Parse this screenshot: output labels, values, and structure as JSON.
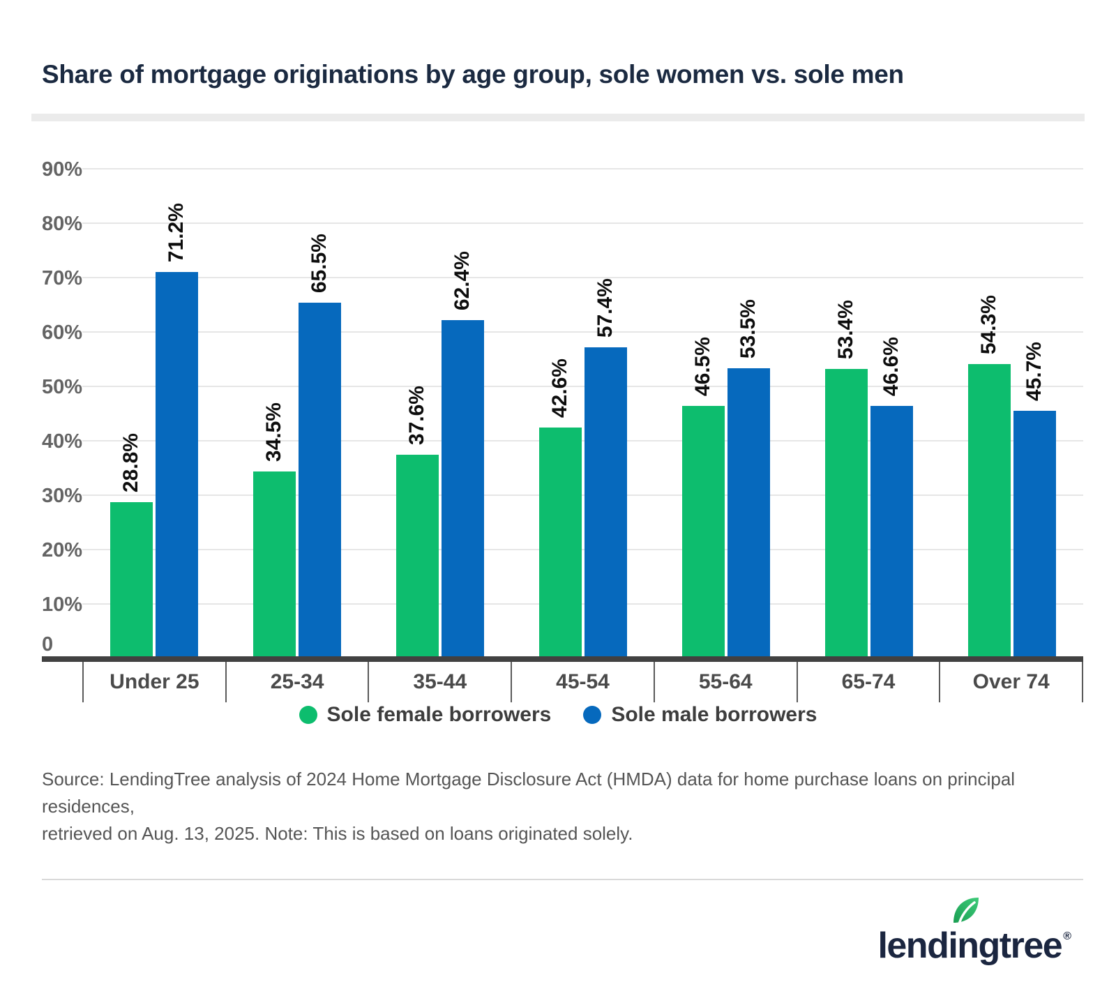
{
  "chart_data": {
    "type": "bar",
    "title": "Share of mortgage originations by age group, sole women vs. sole men",
    "categories": [
      "Under 25",
      "25-34",
      "35-44",
      "45-54",
      "55-64",
      "65-74",
      "Over 74"
    ],
    "series": [
      {
        "name": "Sole female borrowers",
        "color": "#0dbd6e",
        "values": [
          28.8,
          34.5,
          37.6,
          42.6,
          46.5,
          53.4,
          54.3
        ]
      },
      {
        "name": "Sole male borrowers",
        "color": "#0669bd",
        "values": [
          71.2,
          65.5,
          62.4,
          57.4,
          53.5,
          46.6,
          45.7
        ]
      }
    ],
    "value_suffix": "%",
    "value_label_rotation": -90,
    "y_ticks": [
      "90%",
      "80%",
      "70%",
      "60%",
      "50%",
      "40%",
      "30%",
      "20%",
      "10%",
      "0"
    ],
    "ylim": [
      0,
      93
    ],
    "grid": "horizontal",
    "legend_position": "bottom"
  },
  "source": {
    "line1": "Source: LendingTree analysis of 2024 Home Mortgage Disclosure Act (HMDA) data for home purchase loans on principal residences,",
    "line2": "retrieved on Aug. 13, 2025. Note: This is based on loans originated solely."
  },
  "logo": {
    "wordmark": "lendingtree",
    "registered": "®",
    "leaf_icon": "leaf-icon",
    "navy": "#1b2640",
    "leaf_green_dark": "#1a9e52",
    "leaf_green_light": "#3ecb79"
  },
  "colors": {
    "female_green": "#0dbd6e",
    "male_blue": "#0669bd",
    "title_navy": "#1b2a41",
    "axis_dark": "#414141",
    "gridline_gray": "#e6e6e6"
  }
}
